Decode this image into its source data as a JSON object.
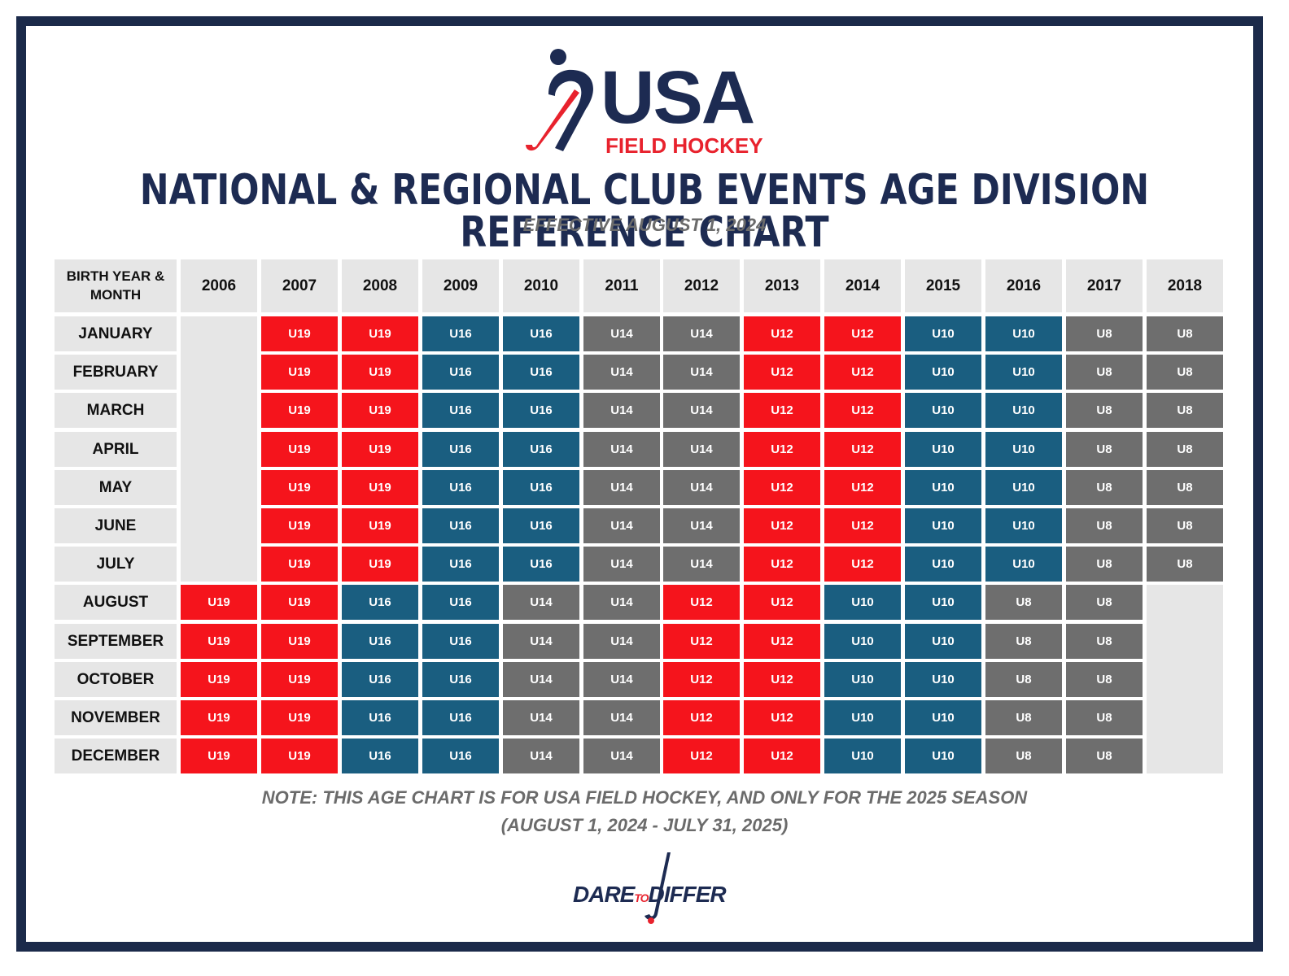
{
  "logo": {
    "usa": "USA",
    "field_hockey": "FIELD HOCKEY"
  },
  "title": "NATIONAL & REGIONAL CLUB EVENTS AGE DIVISION REFERENCE CHART",
  "subtitle": "EFFECTIVE AUGUST 1, 2024",
  "table": {
    "corner_label_line1": "BIRTH YEAR &",
    "corner_label_line2": "MONTH",
    "years": [
      "2006",
      "2007",
      "2008",
      "2009",
      "2010",
      "2011",
      "2012",
      "2013",
      "2014",
      "2015",
      "2016",
      "2017",
      "2018"
    ],
    "months": [
      "JANUARY",
      "FEBRUARY",
      "MARCH",
      "APRIL",
      "MAY",
      "JUNE",
      "JULY",
      "AUGUST",
      "SEPTEMBER",
      "OCTOBER",
      "NOVEMBER",
      "DECEMBER"
    ],
    "rows": [
      [
        "",
        "U19",
        "U19",
        "U16",
        "U16",
        "U14",
        "U14",
        "U12",
        "U12",
        "U10",
        "U10",
        "U8",
        "U8"
      ],
      [
        "",
        "U19",
        "U19",
        "U16",
        "U16",
        "U14",
        "U14",
        "U12",
        "U12",
        "U10",
        "U10",
        "U8",
        "U8"
      ],
      [
        "",
        "U19",
        "U19",
        "U16",
        "U16",
        "U14",
        "U14",
        "U12",
        "U12",
        "U10",
        "U10",
        "U8",
        "U8"
      ],
      [
        "",
        "U19",
        "U19",
        "U16",
        "U16",
        "U14",
        "U14",
        "U12",
        "U12",
        "U10",
        "U10",
        "U8",
        "U8"
      ],
      [
        "",
        "U19",
        "U19",
        "U16",
        "U16",
        "U14",
        "U14",
        "U12",
        "U12",
        "U10",
        "U10",
        "U8",
        "U8"
      ],
      [
        "",
        "U19",
        "U19",
        "U16",
        "U16",
        "U14",
        "U14",
        "U12",
        "U12",
        "U10",
        "U10",
        "U8",
        "U8"
      ],
      [
        "",
        "U19",
        "U19",
        "U16",
        "U16",
        "U14",
        "U14",
        "U12",
        "U12",
        "U10",
        "U10",
        "U8",
        "U8"
      ],
      [
        "U19",
        "U19",
        "U16",
        "U16",
        "U14",
        "U14",
        "U12",
        "U12",
        "U10",
        "U10",
        "U8",
        "U8",
        ""
      ],
      [
        "U19",
        "U19",
        "U16",
        "U16",
        "U14",
        "U14",
        "U12",
        "U12",
        "U10",
        "U10",
        "U8",
        "U8",
        ""
      ],
      [
        "U19",
        "U19",
        "U16",
        "U16",
        "U14",
        "U14",
        "U12",
        "U12",
        "U10",
        "U10",
        "U8",
        "U8",
        ""
      ],
      [
        "U19",
        "U19",
        "U16",
        "U16",
        "U14",
        "U14",
        "U12",
        "U12",
        "U10",
        "U10",
        "U8",
        "U8",
        ""
      ],
      [
        "U19",
        "U19",
        "U16",
        "U16",
        "U14",
        "U14",
        "U12",
        "U12",
        "U10",
        "U10",
        "U8",
        "U8",
        ""
      ]
    ]
  },
  "division_colors": {
    "U19": "#f5141c",
    "U16": "#1a5e80",
    "U14": "#6e6e6e",
    "U12": "#f5141c",
    "U10": "#1a5e80",
    "U8": "#6e6e6e"
  },
  "note_line1": "NOTE: THIS AGE CHART IS FOR USA FIELD HOCKEY, AND ONLY FOR THE 2025 SEASON",
  "note_line2": "(AUGUST 1, 2024 - JULY 31, 2025)",
  "footer_logo": {
    "dare": "DARE",
    "to": "TO",
    "differ": "DIFFER"
  }
}
